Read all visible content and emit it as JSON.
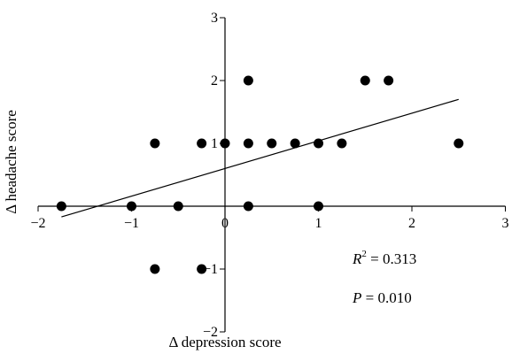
{
  "chart_data": {
    "type": "scatter",
    "title": "",
    "xlabel": "Δ depression score",
    "ylabel": "Δ headache score",
    "xlim": [
      -2,
      3
    ],
    "ylim": [
      -2,
      3
    ],
    "x_ticks": [
      "−2",
      "−1",
      "0",
      "1",
      "2",
      "3"
    ],
    "y_ticks": [
      "−2",
      "−1",
      "0",
      "1",
      "2",
      "3"
    ],
    "grid": false,
    "legend": "none",
    "points": [
      {
        "x": -1.75,
        "y": 0
      },
      {
        "x": -1.0,
        "y": 0
      },
      {
        "x": -0.5,
        "y": 0
      },
      {
        "x": 0.25,
        "y": 0
      },
      {
        "x": 1.0,
        "y": 0
      },
      {
        "x": -0.75,
        "y": 1
      },
      {
        "x": -0.25,
        "y": 1
      },
      {
        "x": 0.0,
        "y": 1
      },
      {
        "x": 0.25,
        "y": 1
      },
      {
        "x": 0.5,
        "y": 1
      },
      {
        "x": 0.75,
        "y": 1
      },
      {
        "x": 1.0,
        "y": 1
      },
      {
        "x": 1.25,
        "y": 1
      },
      {
        "x": 2.5,
        "y": 1
      },
      {
        "x": 0.25,
        "y": 2
      },
      {
        "x": 1.5,
        "y": 2
      },
      {
        "x": 1.75,
        "y": 2
      },
      {
        "x": -0.75,
        "y": -1
      },
      {
        "x": -0.25,
        "y": -1
      }
    ],
    "trendline": {
      "x": [
        -1.75,
        2.5
      ],
      "y": [
        -0.17,
        1.7
      ]
    },
    "annotations": {
      "r2_label": "R",
      "r2_sup": "2",
      "r2_value": " = 0.313",
      "p_label": "P",
      "p_value": " = 0.010"
    },
    "marker_color": "#000000",
    "line_color": "#000000"
  }
}
